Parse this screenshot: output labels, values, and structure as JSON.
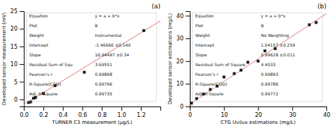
{
  "chart_data": [
    {
      "type": "scatter",
      "title": "(a)",
      "x_label": "TURNER C3 measurement (μg/L)",
      "y_label": "Developed sensor measurement (mV)",
      "series": [
        {
          "type": "line",
          "color": "#e8a0a0",
          "x": [
            0,
            1.4
          ],
          "values": [
            -1.46666,
            22.256298
          ]
        },
        {
          "type": "scatter",
          "color": "#1a1a1a",
          "marker": "square",
          "x": [
            0.05,
            0.07,
            0.1,
            0.12,
            0.2,
            0.32,
            0.62,
            1.23
          ],
          "values": [
            -0.85,
            -0.7,
            0.35,
            0.55,
            1.7,
            3.9,
            7.7,
            19.5
          ]
        }
      ],
      "xlim": [
        0,
        1.4
      ],
      "ylim": [
        -2,
        25
      ],
      "xticks": [
        {
          "value": 0,
          "label": "0.0"
        },
        0.2,
        0.4,
        0.6,
        0.8,
        {
          "value": 1,
          "label": "1.0"
        },
        1.2
      ],
      "yticks": [
        0,
        5,
        10,
        15,
        20,
        25
      ],
      "table": [
        [
          "Equation",
          "y = a + b*x"
        ],
        [
          "Plot",
          "B"
        ],
        [
          "Weight",
          "Instrumental"
        ],
        [
          "Intercept",
          "-1.46666 ±0.140"
        ],
        [
          "Slope",
          "16.94497 ±0.34"
        ],
        [
          "Residual Sum of Squ",
          "3.69551"
        ],
        [
          "Pearson's r",
          "0.99898"
        ],
        [
          "R-Square(COD)",
          "0.99796"
        ],
        [
          "Adj. R-Square",
          "0.99735"
        ]
      ]
    },
    {
      "type": "scatter",
      "title": "(b)",
      "x_label": "CTG Uvilux estimations (mg/L)",
      "y_label": "Developed sensor estimations (mg/L)",
      "series": [
        {
          "type": "line",
          "color": "#e8a0a0",
          "x": [
            0,
            40
          ],
          "values": [
            1.04157,
            40.89277
          ]
        },
        {
          "type": "scatter",
          "color": "#1a1a1a",
          "marker": "square",
          "x": [
            0.5,
            2,
            4,
            6,
            8,
            10,
            13,
            15,
            17,
            20,
            22,
            25,
            35,
            37
          ],
          "values": [
            1.5,
            3.5,
            5.5,
            7.5,
            9,
            13,
            14.5,
            16,
            19.5,
            20,
            24.5,
            25.5,
            36,
            37
          ]
        }
      ],
      "xlim": [
        0,
        40
      ],
      "ylim": [
        0,
        42
      ],
      "xticks": [
        0,
        10,
        20,
        30,
        40
      ],
      "yticks": [
        0,
        10,
        20,
        30,
        40
      ],
      "table": [
        [
          "Equation",
          "y = a + b*x"
        ],
        [
          "Plot",
          "B"
        ],
        [
          "Weight",
          "No Weighting"
        ],
        [
          "Intercept",
          "1.04157 ±0.259"
        ],
        [
          "Slope",
          "0.99628 ±0.011"
        ],
        [
          "Residual Sum of Square",
          "4.4033"
        ],
        [
          "Pearson's r",
          "0.99893"
        ],
        [
          "R-Square(COD)",
          "0.99786"
        ],
        [
          "Adj. R-Square",
          "0.99772"
        ]
      ]
    }
  ]
}
